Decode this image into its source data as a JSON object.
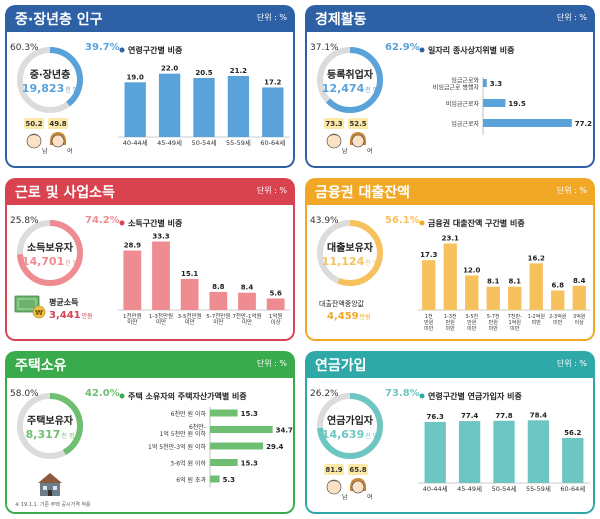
{
  "panels": [
    {
      "id": "middle-age",
      "title": "중·장년층 인구",
      "unit": "단위 : %",
      "color": "#2e60a6",
      "bar_color": "#5aa2da",
      "ring": {
        "left_pct": "60.3%",
        "right_pct": "39.7%",
        "value": 39.7,
        "label": "중·장년층",
        "amount": "19,823",
        "amount_unit": "천 명"
      },
      "chart_title": "연령구간별 비중",
      "extra": {
        "type": "gender",
        "male_value": "50.2",
        "female_value": "49.8",
        "male_label": "남",
        "female_label": "여"
      },
      "chart_data": {
        "type": "bar",
        "categories": [
          "40-44세",
          "45-49세",
          "50-54세",
          "55-59세",
          "60-64세"
        ],
        "values": [
          19.0,
          22.0,
          20.5,
          21.2,
          17.2
        ],
        "value_labels": [
          "19.0",
          "22.0",
          "20.5",
          "21.2",
          "17.2"
        ],
        "ylim": [
          0,
          25
        ]
      }
    },
    {
      "id": "economic",
      "title": "경제활동",
      "unit": "단위 : %",
      "color": "#2e60a6",
      "bar_color": "#5aa2da",
      "ring": {
        "left_pct": "37.1%",
        "right_pct": "62.9%",
        "value": 62.9,
        "label": "등록취업자",
        "amount": "12,474",
        "amount_unit": "천 명"
      },
      "chart_title": "일자리 종사상지위별 비중",
      "extra": {
        "type": "gender",
        "male_value": "73.3",
        "female_value": "52.5",
        "male_label": "남",
        "female_label": "여"
      },
      "chart_data": {
        "type": "hbar",
        "categories": [
          "임금근로와\n비임금근로 병행자",
          "비임금근로자",
          "임금근로자"
        ],
        "values": [
          3.3,
          19.5,
          77.2
        ],
        "value_labels": [
          "3.3",
          "19.5",
          "77.2"
        ],
        "xlim": [
          0,
          80
        ]
      }
    },
    {
      "id": "income",
      "title": "근로 및 사업소득",
      "unit": "단위 : %",
      "color": "#d9434f",
      "bar_color": "#ee8c92",
      "ring": {
        "left_pct": "25.8%",
        "right_pct": "74.2%",
        "value": 74.2,
        "label": "소득보유자",
        "amount": "14,701",
        "amount_unit": "천 명"
      },
      "chart_title": "소득구간별 비중",
      "extra": {
        "type": "money",
        "label": "평균소득",
        "amount": "3,441",
        "amount_unit": "만원",
        "coin": "₩"
      },
      "chart_data": {
        "type": "bar",
        "categories": [
          "1천만원\n미만",
          "1-3천만원\n미만",
          "3-5천만원\n미만",
          "5-7천만원\n미만",
          "7천만-1억원\n미만",
          "1억원\n이상"
        ],
        "values": [
          28.9,
          33.3,
          15.1,
          8.8,
          8.4,
          5.6
        ],
        "value_labels": [
          "28.9",
          "33.3",
          "15.1",
          "8.8",
          "8.4",
          "5.6"
        ],
        "ylim": [
          0,
          35
        ]
      }
    },
    {
      "id": "loan",
      "title": "금융권 대출잔액",
      "unit": "단위 : %",
      "color": "#f0a826",
      "bar_color": "#f7c25e",
      "ring": {
        "left_pct": "43.9%",
        "right_pct": "56.1%",
        "value": 56.1,
        "label": "대출보유자",
        "amount": "11,124",
        "amount_unit": "천 명"
      },
      "chart_title": "금융권 대출잔액 구간별 비중",
      "extra": {
        "type": "text",
        "label": "대출잔액중앙값",
        "amount": "4,459",
        "amount_unit": "만원"
      },
      "chart_data": {
        "type": "bar",
        "categories": [
          "1천\n만원\n미만",
          "1-3천\n만원\n미만",
          "3-5천\n만원\n미만",
          "5-7천\n만원\n미만",
          "7천만-\n1억원\n미만",
          "1-2억원\n미만",
          "2-3억원\n미만",
          "3억원\n이상"
        ],
        "values": [
          17.3,
          23.1,
          12.0,
          8.1,
          8.1,
          16.2,
          6.8,
          8.4
        ],
        "value_labels": [
          "17.3",
          "23.1",
          "12.0",
          "8.1",
          "8.1",
          "16.2",
          "6.8",
          "8.4"
        ],
        "ylim": [
          0,
          25
        ]
      }
    },
    {
      "id": "housing",
      "title": "주택소유",
      "unit": "단위 : %",
      "color": "#3aab4d",
      "bar_color": "#6fbf73",
      "ring": {
        "left_pct": "58.0%",
        "right_pct": "42.0%",
        "value": 42.0,
        "label": "주택보유자",
        "amount": "8,317",
        "amount_unit": "천 명"
      },
      "chart_title": "주택 소유자의 주택자산가액별 비중",
      "extra": {
        "type": "house",
        "footnote": "※ 19.1.1. 기준 주택 공시가격 적용"
      },
      "chart_data": {
        "type": "hbar",
        "categories": [
          "6천만 원 이하",
          "6천만-\n1억 5천만 원 이하",
          "1억 5천만-3억 원 이하",
          "3-6억 원 이하",
          "6억 원 초과"
        ],
        "values": [
          15.3,
          34.7,
          29.4,
          15.3,
          5.3
        ],
        "value_labels": [
          "15.3",
          "34.7",
          "29.4",
          "15.3",
          "5.3"
        ],
        "xlim": [
          0,
          36
        ]
      }
    },
    {
      "id": "pension",
      "title": "연금가입",
      "unit": "단위 : %",
      "color": "#2fa8a8",
      "bar_color": "#6ec6c2",
      "ring": {
        "left_pct": "26.2%",
        "right_pct": "73.8%",
        "value": 73.8,
        "label": "연금가입자",
        "amount": "14,639",
        "amount_unit": "천 명"
      },
      "chart_title": "연령구간별 연금가입자 비중",
      "extra": {
        "type": "gender",
        "male_value": "81.9",
        "female_value": "65.8",
        "male_label": "남",
        "female_label": "여"
      },
      "chart_data": {
        "type": "bar",
        "categories": [
          "40-44세",
          "45-49세",
          "50-54세",
          "55-59세",
          "60-64세"
        ],
        "values": [
          76.3,
          77.4,
          77.8,
          78.4,
          56.2
        ],
        "value_labels": [
          "76.3",
          "77.4",
          "77.8",
          "78.4",
          "56.2"
        ],
        "ylim": [
          0,
          90
        ]
      }
    }
  ]
}
